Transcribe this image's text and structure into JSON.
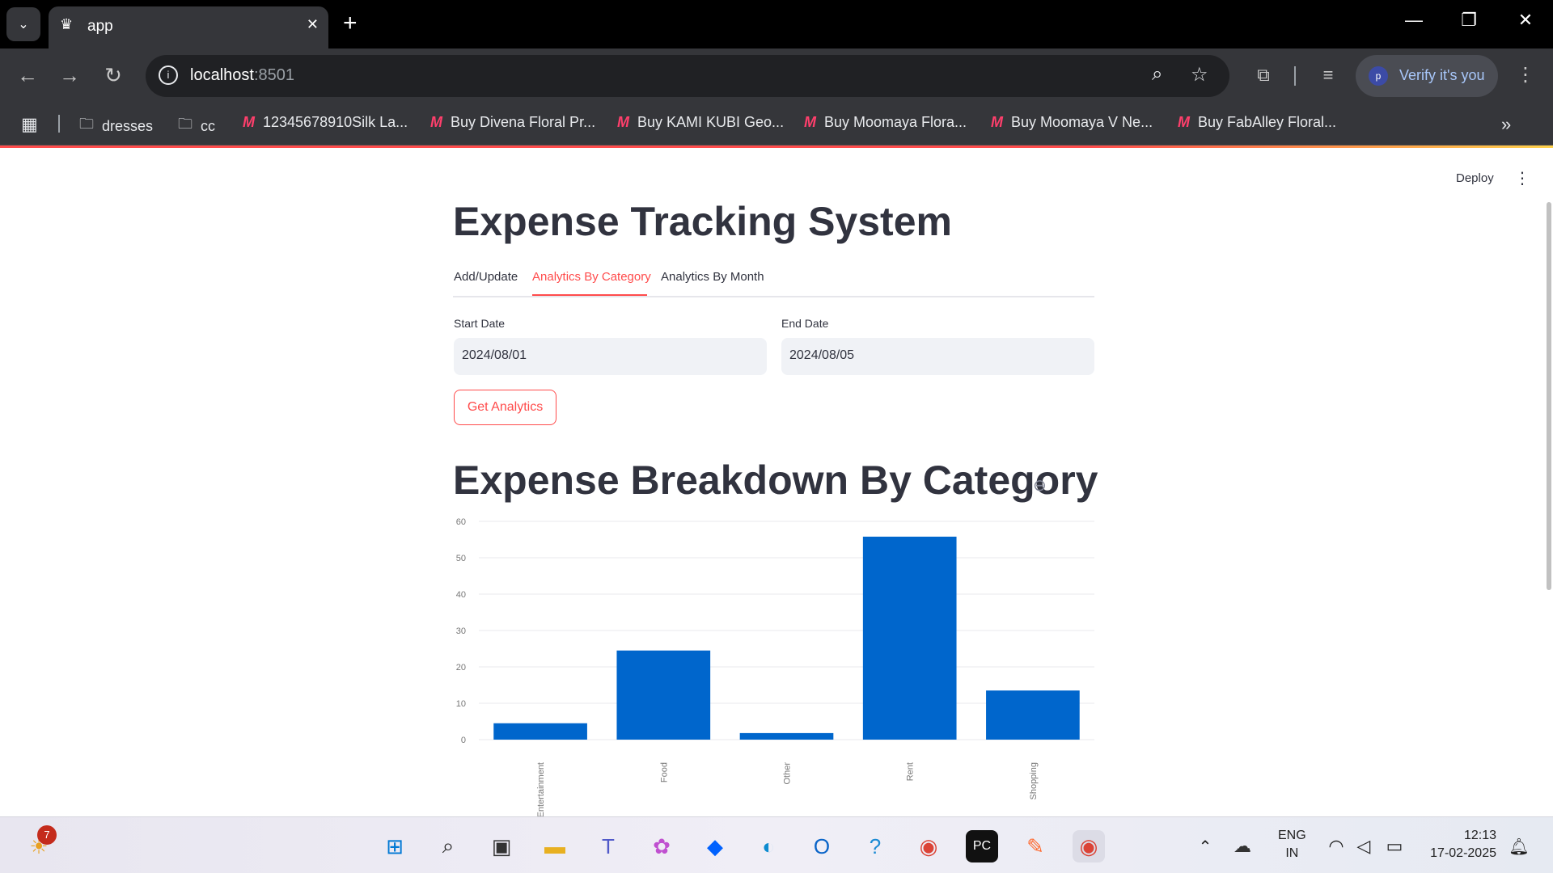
{
  "browser": {
    "tab_title": "app",
    "url_host": "localhost",
    "url_port": ":8501",
    "profile_label": "Verify it's you",
    "profile_initial": "p"
  },
  "bookmarks": [
    {
      "label": "dresses",
      "type": "folder"
    },
    {
      "label": "cc",
      "type": "folder"
    },
    {
      "label": "12345678910Silk La...",
      "type": "myntra"
    },
    {
      "label": "Buy Divena Floral Pr...",
      "type": "myntra"
    },
    {
      "label": "Buy KAMI KUBI Geo...",
      "type": "myntra"
    },
    {
      "label": "Buy Moomaya Flora...",
      "type": "myntra"
    },
    {
      "label": "Buy Moomaya V Ne...",
      "type": "myntra"
    },
    {
      "label": "Buy FabAlley Floral...",
      "type": "myntra"
    }
  ],
  "app": {
    "deploy_label": "Deploy",
    "title": "Expense Tracking System",
    "tabs": [
      "Add/Update",
      "Analytics By Category",
      "Analytics By Month"
    ],
    "active_tab": "Analytics By Category",
    "start_date_label": "Start Date",
    "start_date_value": "2024/08/01",
    "end_date_label": "End Date",
    "end_date_value": "2024/08/05",
    "button_label": "Get Analytics",
    "section_title": "Expense Breakdown By Category"
  },
  "chart_data": {
    "type": "bar",
    "categories": [
      "Entertainment",
      "Food",
      "Other",
      "Rent",
      "Shopping"
    ],
    "values": [
      4.5,
      24.5,
      1.8,
      55.8,
      13.5
    ],
    "ylim": [
      0,
      60
    ],
    "yticks": [
      0,
      10,
      20,
      30,
      40,
      50,
      60
    ],
    "bar_color": "#0066cc",
    "title": "",
    "xlabel": "",
    "ylabel": ""
  },
  "taskbar": {
    "notification_count": "7",
    "lang_top": "ENG",
    "lang_bottom": "IN",
    "time": "12:13",
    "date": "17-02-2025"
  }
}
